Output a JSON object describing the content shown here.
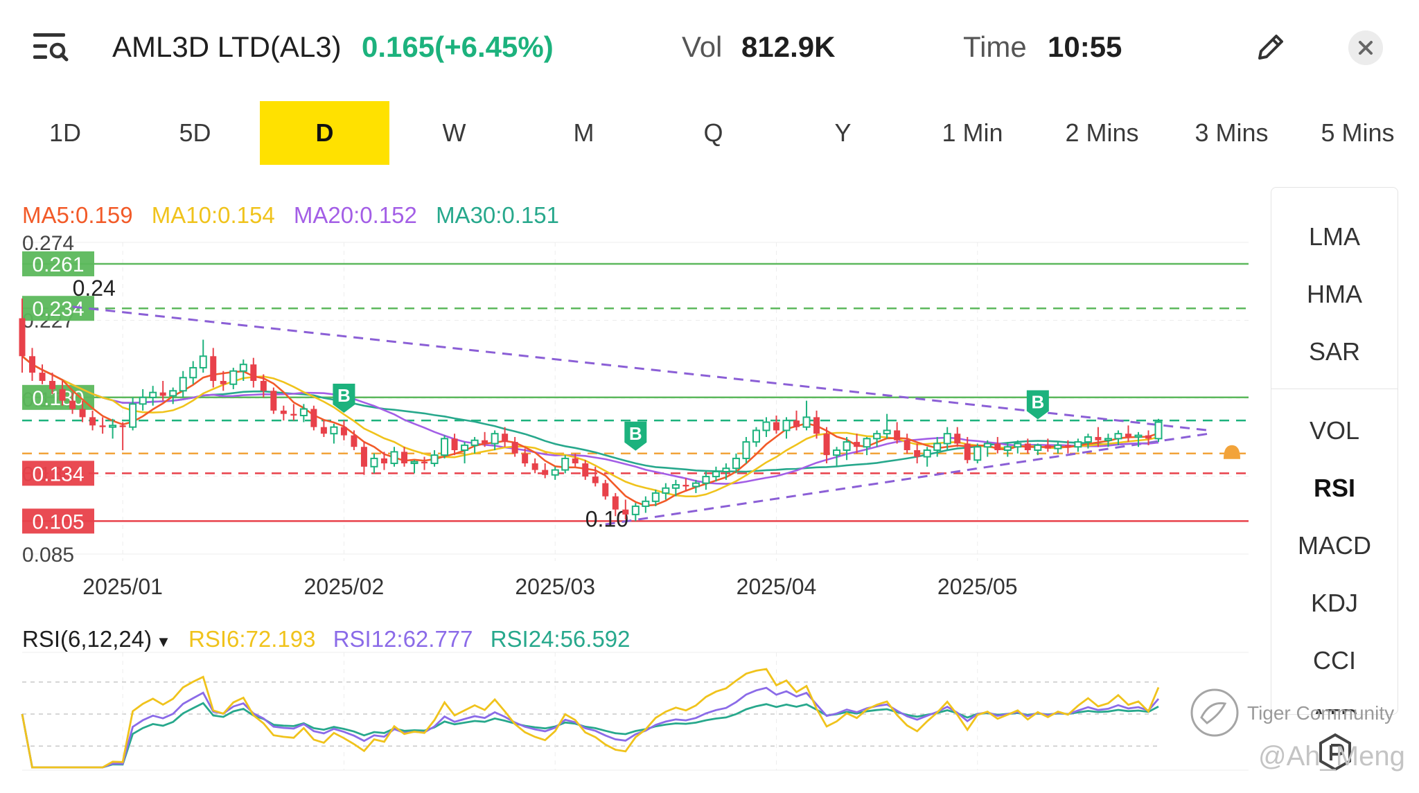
{
  "header": {
    "menu_icon": "search-menu-icon",
    "title": "AML3D LTD(AL3)",
    "price_change": "0.165(+6.45%)",
    "vol_label": "Vol",
    "vol_value": "812.9K",
    "time_label": "Time",
    "time_value": "10:55",
    "edit_icon": "pencil-icon",
    "close_icon": "close-icon"
  },
  "tabs": [
    {
      "label": "1D",
      "active": false
    },
    {
      "label": "5D",
      "active": false
    },
    {
      "label": "D",
      "active": true
    },
    {
      "label": "W",
      "active": false
    },
    {
      "label": "M",
      "active": false
    },
    {
      "label": "Q",
      "active": false
    },
    {
      "label": "Y",
      "active": false
    },
    {
      "label": "1 Min",
      "active": false
    },
    {
      "label": "2 Mins",
      "active": false
    },
    {
      "label": "3 Mins",
      "active": false
    },
    {
      "label": "5 Mins",
      "active": false
    }
  ],
  "side_panel": {
    "items": [
      "LMA",
      "HMA",
      "SAR",
      "VOL",
      "RSI",
      "MACD",
      "KDJ",
      "CCI",
      "ATR"
    ],
    "active": "RSI"
  },
  "watermark": {
    "brand": "Tiger Community",
    "handle": "@Ah_Meng"
  },
  "colors": {
    "up": "#1cb27d",
    "down": "#e8414a",
    "ma5": "#f25a28",
    "ma10": "#f0c31c",
    "ma20": "#a35ee6",
    "ma30": "#27a88c",
    "rsi6": "#f0c31c",
    "rsi12": "#8b6be8",
    "rsi24": "#27a88c",
    "active_tab": "#ffe100",
    "price_green": "#1cb27d"
  },
  "chart_data": [
    {
      "type": "candlestick",
      "legend": {
        "ma5": "MA5:0.159",
        "ma10": "MA10:0.154",
        "ma20": "MA20:0.152",
        "ma30": "MA30:0.151"
      },
      "y_axis_labels": [
        "0.274",
        "0.227",
        "0.179",
        "0.134",
        "0.085"
      ],
      "ylim": [
        0.085,
        0.274
      ],
      "x_tick_labels": [
        "2025/01",
        "2025/02",
        "2025/03",
        "2025/04",
        "2025/05"
      ],
      "x_tick_positions": [
        10,
        32,
        53,
        75,
        95
      ],
      "horizontal_levels": [
        {
          "label": "0.261",
          "value": 0.261,
          "style": "solid",
          "color": "#5cb85c"
        },
        {
          "label": "0.234",
          "value": 0.234,
          "style": "dashed",
          "color": "#5cb85c"
        },
        {
          "label": "0.180",
          "value": 0.18,
          "style": "solid",
          "color": "#5cb85c"
        },
        {
          "value": 0.166,
          "style": "dashed",
          "color": "#1cb27d"
        },
        {
          "value": 0.146,
          "style": "dashed",
          "color": "#f2a33a"
        },
        {
          "label": "0.134",
          "value": 0.134,
          "style": "dashed",
          "color": "#e8414a"
        },
        {
          "label": "0.105",
          "value": 0.105,
          "style": "solid",
          "color": "#e8414a"
        }
      ],
      "annotations": [
        {
          "text": "0.24",
          "x": 5,
          "y": 0.24
        },
        {
          "text": "0.10",
          "x": 56,
          "y": 0.1
        }
      ],
      "trendlines": [
        {
          "from": [
            5,
            0.235
          ],
          "to": [
            118,
            0.16
          ]
        },
        {
          "from": [
            58,
            0.103
          ],
          "to": [
            118,
            0.158
          ]
        }
      ],
      "buy_markers": [
        {
          "label": "B",
          "x": 32,
          "y": 0.169
        },
        {
          "label": "B",
          "x": 61,
          "y": 0.146
        },
        {
          "label": "B",
          "x": 101,
          "y": 0.165
        }
      ],
      "ohlc": [
        [
          0.228,
          0.24,
          0.195,
          0.205
        ],
        [
          0.205,
          0.21,
          0.19,
          0.195
        ],
        [
          0.195,
          0.2,
          0.188,
          0.19
        ],
        [
          0.19,
          0.195,
          0.182,
          0.185
        ],
        [
          0.185,
          0.19,
          0.175,
          0.178
        ],
        [
          0.178,
          0.183,
          0.17,
          0.173
        ],
        [
          0.173,
          0.178,
          0.165,
          0.168
        ],
        [
          0.168,
          0.172,
          0.16,
          0.163
        ],
        [
          0.163,
          0.168,
          0.158,
          0.162
        ],
        [
          0.162,
          0.167,
          0.155,
          0.163
        ],
        [
          0.163,
          0.165,
          0.148,
          0.162
        ],
        [
          0.162,
          0.18,
          0.16,
          0.176
        ],
        [
          0.176,
          0.185,
          0.172,
          0.18
        ],
        [
          0.18,
          0.187,
          0.175,
          0.183
        ],
        [
          0.183,
          0.19,
          0.178,
          0.181
        ],
        [
          0.181,
          0.186,
          0.176,
          0.184
        ],
        [
          0.184,
          0.196,
          0.18,
          0.192
        ],
        [
          0.192,
          0.202,
          0.188,
          0.198
        ],
        [
          0.198,
          0.215,
          0.195,
          0.205
        ],
        [
          0.205,
          0.21,
          0.186,
          0.19
        ],
        [
          0.19,
          0.196,
          0.184,
          0.188
        ],
        [
          0.188,
          0.198,
          0.185,
          0.196
        ],
        [
          0.196,
          0.203,
          0.19,
          0.2
        ],
        [
          0.2,
          0.204,
          0.186,
          0.19
        ],
        [
          0.19,
          0.194,
          0.18,
          0.184
        ],
        [
          0.184,
          0.186,
          0.17,
          0.172
        ],
        [
          0.172,
          0.175,
          0.166,
          0.17
        ],
        [
          0.17,
          0.176,
          0.166,
          0.169
        ],
        [
          0.169,
          0.176,
          0.165,
          0.173
        ],
        [
          0.173,
          0.175,
          0.16,
          0.162
        ],
        [
          0.162,
          0.166,
          0.156,
          0.158
        ],
        [
          0.158,
          0.164,
          0.152,
          0.162
        ],
        [
          0.162,
          0.166,
          0.154,
          0.157
        ],
        [
          0.157,
          0.16,
          0.148,
          0.15
        ],
        [
          0.15,
          0.153,
          0.133,
          0.138
        ],
        [
          0.138,
          0.146,
          0.134,
          0.143
        ],
        [
          0.143,
          0.147,
          0.136,
          0.14
        ],
        [
          0.14,
          0.15,
          0.138,
          0.147
        ],
        [
          0.147,
          0.15,
          0.138,
          0.14
        ],
        [
          0.14,
          0.142,
          0.134,
          0.141
        ],
        [
          0.141,
          0.144,
          0.136,
          0.14
        ],
        [
          0.14,
          0.148,
          0.138,
          0.145
        ],
        [
          0.145,
          0.157,
          0.143,
          0.155
        ],
        [
          0.155,
          0.158,
          0.145,
          0.148
        ],
        [
          0.148,
          0.153,
          0.14,
          0.151
        ],
        [
          0.151,
          0.156,
          0.146,
          0.154
        ],
        [
          0.154,
          0.159,
          0.15,
          0.152
        ],
        [
          0.152,
          0.16,
          0.148,
          0.158
        ],
        [
          0.158,
          0.162,
          0.15,
          0.153
        ],
        [
          0.153,
          0.156,
          0.144,
          0.146
        ],
        [
          0.146,
          0.149,
          0.138,
          0.14
        ],
        [
          0.14,
          0.143,
          0.134,
          0.136
        ],
        [
          0.136,
          0.14,
          0.131,
          0.133
        ],
        [
          0.133,
          0.138,
          0.13,
          0.136
        ],
        [
          0.136,
          0.145,
          0.134,
          0.143
        ],
        [
          0.143,
          0.146,
          0.138,
          0.14
        ],
        [
          0.14,
          0.142,
          0.13,
          0.132
        ],
        [
          0.132,
          0.138,
          0.126,
          0.128
        ],
        [
          0.128,
          0.13,
          0.118,
          0.12
        ],
        [
          0.12,
          0.122,
          0.108,
          0.112
        ],
        [
          0.112,
          0.118,
          0.106,
          0.109
        ],
        [
          0.109,
          0.116,
          0.105,
          0.114
        ],
        [
          0.114,
          0.12,
          0.11,
          0.117
        ],
        [
          0.117,
          0.124,
          0.114,
          0.122
        ],
        [
          0.122,
          0.128,
          0.118,
          0.125
        ],
        [
          0.125,
          0.13,
          0.12,
          0.127
        ],
        [
          0.127,
          0.131,
          0.123,
          0.126
        ],
        [
          0.126,
          0.13,
          0.122,
          0.128
        ],
        [
          0.128,
          0.135,
          0.124,
          0.132
        ],
        [
          0.132,
          0.138,
          0.129,
          0.135
        ],
        [
          0.135,
          0.14,
          0.13,
          0.137
        ],
        [
          0.137,
          0.146,
          0.134,
          0.143
        ],
        [
          0.143,
          0.156,
          0.14,
          0.153
        ],
        [
          0.153,
          0.162,
          0.15,
          0.16
        ],
        [
          0.16,
          0.168,
          0.156,
          0.165
        ],
        [
          0.165,
          0.169,
          0.158,
          0.16
        ],
        [
          0.16,
          0.168,
          0.155,
          0.166
        ],
        [
          0.166,
          0.172,
          0.16,
          0.162
        ],
        [
          0.162,
          0.178,
          0.16,
          0.168
        ],
        [
          0.168,
          0.172,
          0.155,
          0.158
        ],
        [
          0.158,
          0.162,
          0.14,
          0.145
        ],
        [
          0.145,
          0.15,
          0.138,
          0.148
        ],
        [
          0.148,
          0.156,
          0.142,
          0.153
        ],
        [
          0.153,
          0.158,
          0.146,
          0.15
        ],
        [
          0.15,
          0.156,
          0.145,
          0.155
        ],
        [
          0.155,
          0.16,
          0.15,
          0.158
        ],
        [
          0.158,
          0.17,
          0.155,
          0.16
        ],
        [
          0.16,
          0.165,
          0.152,
          0.154
        ],
        [
          0.154,
          0.158,
          0.146,
          0.148
        ],
        [
          0.148,
          0.152,
          0.14,
          0.144
        ],
        [
          0.144,
          0.15,
          0.138,
          0.148
        ],
        [
          0.148,
          0.156,
          0.144,
          0.152
        ],
        [
          0.152,
          0.162,
          0.148,
          0.158
        ],
        [
          0.158,
          0.162,
          0.15,
          0.152
        ],
        [
          0.152,
          0.156,
          0.14,
          0.142
        ],
        [
          0.142,
          0.152,
          0.14,
          0.15
        ],
        [
          0.15,
          0.154,
          0.144,
          0.152
        ],
        [
          0.152,
          0.156,
          0.146,
          0.148
        ],
        [
          0.148,
          0.153,
          0.144,
          0.15
        ],
        [
          0.15,
          0.154,
          0.146,
          0.152
        ],
        [
          0.152,
          0.155,
          0.146,
          0.148
        ],
        [
          0.148,
          0.152,
          0.145,
          0.151
        ],
        [
          0.151,
          0.155,
          0.147,
          0.149
        ],
        [
          0.149,
          0.153,
          0.146,
          0.151
        ],
        [
          0.151,
          0.154,
          0.146,
          0.15
        ],
        [
          0.15,
          0.155,
          0.147,
          0.153
        ],
        [
          0.153,
          0.158,
          0.149,
          0.156
        ],
        [
          0.156,
          0.162,
          0.15,
          0.154
        ],
        [
          0.154,
          0.158,
          0.15,
          0.155
        ],
        [
          0.155,
          0.16,
          0.151,
          0.158
        ],
        [
          0.158,
          0.163,
          0.153,
          0.156
        ],
        [
          0.156,
          0.159,
          0.15,
          0.157
        ],
        [
          0.157,
          0.16,
          0.151,
          0.155
        ],
        [
          0.155,
          0.167,
          0.153,
          0.165
        ]
      ]
    },
    {
      "type": "line",
      "legend": {
        "title": "RSI(6,12,24)",
        "dropdown_icon": "caret-down-icon",
        "rsi6": "RSI6:72.193",
        "rsi12": "RSI12:62.777",
        "rsi24": "RSI24:56.592"
      },
      "ylim": [
        0,
        100
      ],
      "guide_levels": [
        80,
        50,
        20
      ]
    }
  ]
}
